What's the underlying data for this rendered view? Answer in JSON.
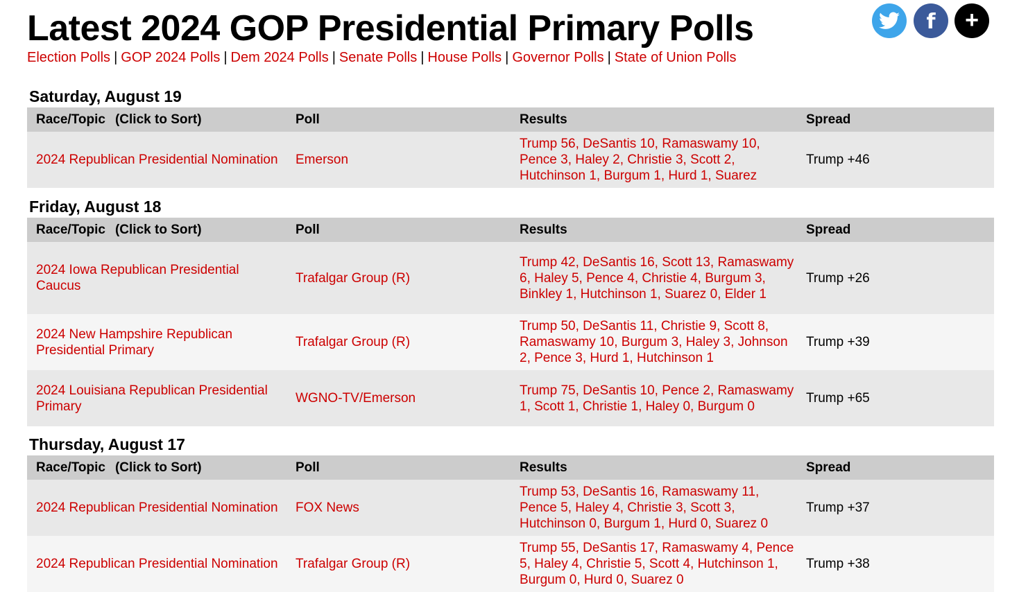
{
  "header": {
    "title": "Latest 2024 GOP Presidential Primary Polls",
    "nav": [
      "Election Polls",
      "GOP 2024 Polls",
      "Dem 2024 Polls",
      "Senate Polls",
      "House Polls",
      "Governor Polls",
      "State of Union Polls"
    ],
    "separator": "|"
  },
  "social": {
    "twitter_icon": "twitter-icon",
    "facebook_icon": "facebook-icon",
    "facebook_glyph": "f",
    "more_icon": "plus-icon",
    "more_glyph": "+"
  },
  "colors": {
    "link": "#cc0000",
    "header_bg": "#cccccc",
    "row_bg": "#e8e8e8",
    "row_alt_bg": "#f5f5f5"
  },
  "table_headers": {
    "race": "Race/Topic",
    "sort_hint": "(Click to Sort)",
    "poll": "Poll",
    "results": "Results",
    "spread": "Spread"
  },
  "sections": [
    {
      "date": "Saturday, August 19",
      "rows": [
        {
          "race": "2024 Republican Presidential Nomination",
          "poll": "Emerson",
          "results": "Trump 56, DeSantis 10, Ramaswamy 10, Pence 3, Haley 2, Christie 3, Scott 2, Hutchinson 1, Burgum 1, Hurd 1, Suarez",
          "spread": "Trump +46"
        }
      ]
    },
    {
      "date": "Friday, August 18",
      "rows": [
        {
          "race": "2024 Iowa Republican Presidential Caucus",
          "poll": "Trafalgar Group (R)",
          "results": "Trump 42, DeSantis 16, Scott 13, Ramaswamy 6, Haley 5, Pence 4, Christie 4, Burgum 3, Binkley 1, Hutchinson 1, Suarez 0, Elder 1",
          "spread": "Trump +26"
        },
        {
          "race": "2024 New Hampshire Republican Presidential Primary",
          "poll": "Trafalgar Group (R)",
          "results": "Trump 50, DeSantis 11, Christie 9, Scott 8, Ramaswamy 10, Burgum 3, Haley 3, Johnson 2, Pence 3, Hurd 1, Hutchinson 1",
          "spread": "Trump +39"
        },
        {
          "race": "2024 Louisiana Republican Presidential Primary",
          "poll": "WGNO-TV/Emerson",
          "results": "Trump 75, DeSantis 10, Pence 2, Ramaswamy 1, Scott 1, Christie 1, Haley 0, Burgum 0",
          "spread": "Trump +65"
        }
      ]
    },
    {
      "date": "Thursday, August 17",
      "rows": [
        {
          "race": "2024 Republican Presidential Nomination",
          "poll": "FOX News",
          "results": "Trump 53, DeSantis 16, Ramaswamy 11, Pence 5, Haley 4, Christie 3, Scott 3, Hutchinson 0, Burgum 1, Hurd 0, Suarez 0",
          "spread": "Trump +37"
        },
        {
          "race": "2024 Republican Presidential Nomination",
          "poll": "Trafalgar Group (R)",
          "results": "Trump 55, DeSantis 17, Ramaswamy 4, Pence 5, Haley 4, Christie 5, Scott 4, Hutchinson 1, Burgum 0, Hurd 0, Suarez 0",
          "spread": "Trump +38"
        }
      ]
    }
  ]
}
